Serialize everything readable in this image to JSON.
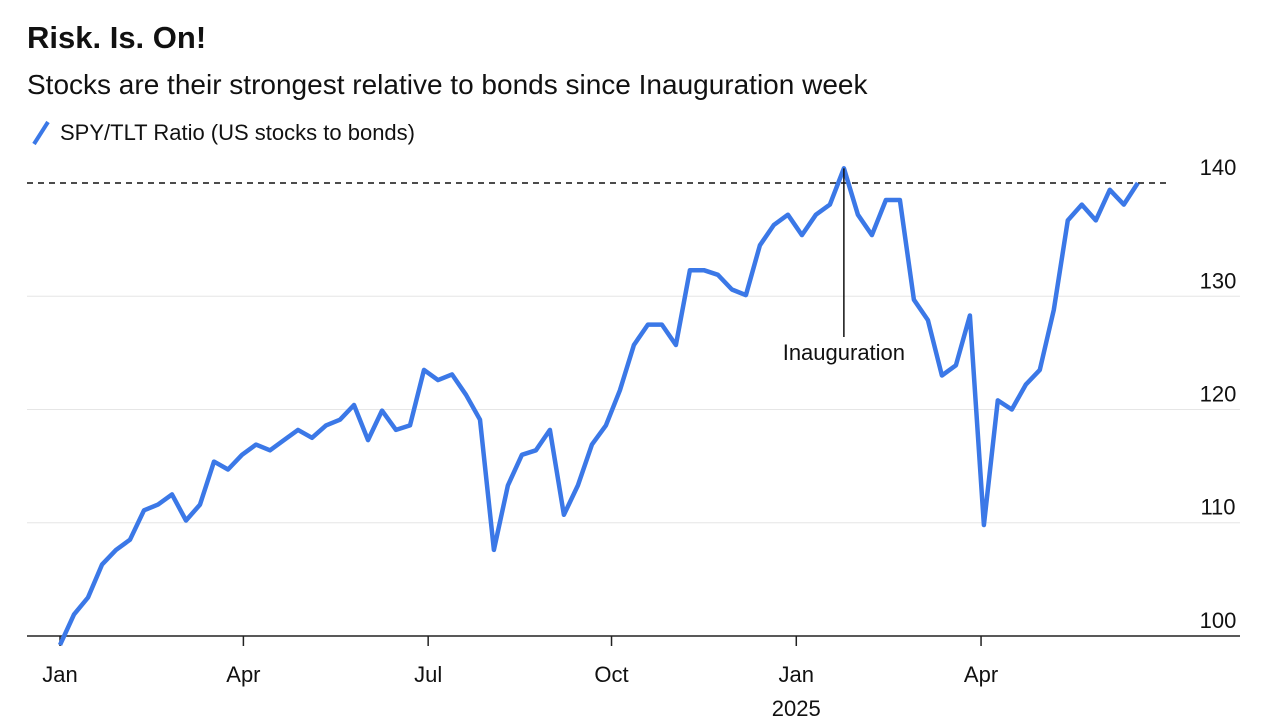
{
  "chart_data": {
    "type": "line",
    "title": "Risk. Is. On!",
    "subtitle": "Stocks are their strongest relative to bonds since Inauguration week",
    "series": [
      {
        "name": "SPY/TLT Ratio (US stocks to bonds)",
        "color": "#3b78e7",
        "values": [
          99.2,
          101.9,
          103.4,
          106.3,
          107.6,
          108.5,
          111.1,
          111.6,
          112.5,
          110.2,
          111.6,
          115.4,
          114.7,
          116.0,
          116.9,
          116.4,
          117.3,
          118.2,
          117.5,
          118.6,
          119.1,
          120.4,
          117.3,
          119.9,
          118.2,
          118.6,
          123.5,
          122.6,
          123.1,
          121.3,
          119.1,
          107.6,
          113.3,
          116.0,
          116.4,
          118.2,
          110.7,
          113.3,
          116.9,
          118.6,
          121.7,
          125.7,
          127.5,
          127.5,
          125.7,
          132.3,
          132.3,
          131.9,
          130.6,
          130.1,
          134.5,
          136.3,
          137.2,
          135.4,
          137.2,
          138.1,
          141.3,
          137.2,
          135.4,
          138.5,
          138.5,
          129.7,
          127.9,
          123.0,
          123.9,
          128.3,
          109.8,
          120.8,
          120.0,
          122.2,
          123.5,
          128.8,
          136.7,
          138.1,
          136.7,
          139.4,
          138.1,
          140.0
        ]
      }
    ],
    "xlim": [
      -2.36,
      84.3
    ],
    "xticks": [
      {
        "value": 0,
        "label": "Jan"
      },
      {
        "value": 13.1,
        "label": "Apr"
      },
      {
        "value": 26.3,
        "label": "Jul"
      },
      {
        "value": 39.4,
        "label": "Oct"
      },
      {
        "value": 52.6,
        "label": "Jan",
        "sublabel": "2025"
      },
      {
        "value": 65.8,
        "label": "Apr"
      }
    ],
    "ylim": [
      98,
      142
    ],
    "yticks": [
      100,
      110,
      120,
      130,
      140
    ],
    "grid": true,
    "reference_line": 140,
    "annotation": {
      "text": "Inauguration",
      "index": 56
    }
  }
}
